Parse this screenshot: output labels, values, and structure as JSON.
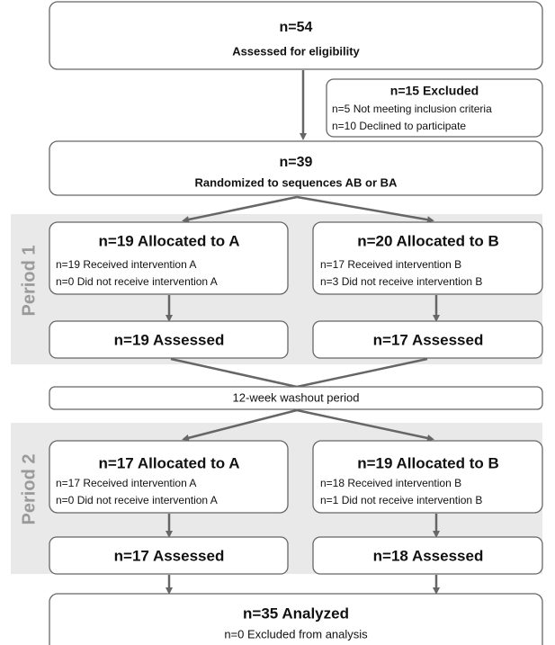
{
  "nodes": [
    {
      "title": "n=54",
      "subtitle": "Assessed for eligibility"
    },
    {
      "title": "n=15 Excluded",
      "lines": [
        "n=5 Not meeting inclusion criteria",
        "n=10 Declined to participate"
      ]
    },
    {
      "title": "n=39",
      "subtitle": "Randomized to sequences AB or BA"
    },
    {
      "title": "n=19 Allocated to A",
      "lines": [
        "n=19 Received intervention A",
        "n=0 Did not receive intervention A"
      ]
    },
    {
      "title": "n=20 Allocated to B",
      "lines": [
        "n=17 Received intervention B",
        "n=3 Did not receive intervention B"
      ]
    },
    {
      "title": "n=19 Assessed"
    },
    {
      "title": "n=17 Assessed"
    },
    {
      "title": "12-week washout period"
    },
    {
      "title": "n=17 Allocated to A",
      "lines": [
        "n=17 Received intervention A",
        "n=0 Did not receive intervention A"
      ]
    },
    {
      "title": "n=19 Allocated to B",
      "lines": [
        "n=18 Received intervention B",
        "n=1 Did not receive intervention B"
      ]
    },
    {
      "title": "n=17 Assessed"
    },
    {
      "title": "n=18 Assessed"
    },
    {
      "title": "n=35 Analyzed",
      "subtitle": "n=0 Excluded from analysis"
    }
  ],
  "periods": [
    "Period 1",
    "Period 2"
  ]
}
